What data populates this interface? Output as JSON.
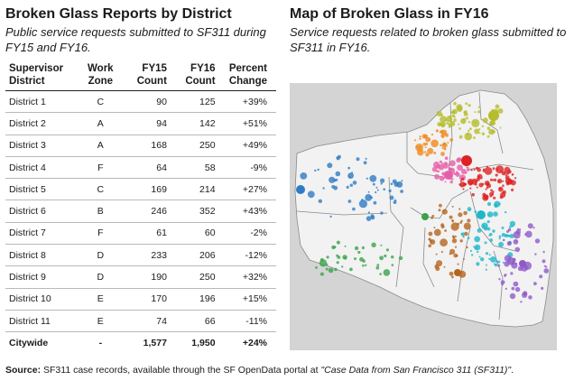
{
  "table_panel": {
    "title": "Broken Glass Reports by District",
    "subtitle": "Public service requests submitted to SF311 during FY15 and FY16.",
    "headers": {
      "district": [
        "Supervisor",
        "District"
      ],
      "zone": [
        "Work",
        "Zone"
      ],
      "fy15": [
        "FY15",
        "Count"
      ],
      "fy16": [
        "FY16",
        "Count"
      ],
      "pct": [
        "Percent",
        "Change"
      ]
    },
    "rows": [
      {
        "district": "District 1",
        "zone": "C",
        "fy15": "90",
        "fy16": "125",
        "pct": "+39%"
      },
      {
        "district": "District 2",
        "zone": "A",
        "fy15": "94",
        "fy16": "142",
        "pct": "+51%"
      },
      {
        "district": "District 3",
        "zone": "A",
        "fy15": "168",
        "fy16": "250",
        "pct": "+49%"
      },
      {
        "district": "District 4",
        "zone": "F",
        "fy15": "64",
        "fy16": "58",
        "pct": "-9%"
      },
      {
        "district": "District 5",
        "zone": "C",
        "fy15": "169",
        "fy16": "214",
        "pct": "+27%"
      },
      {
        "district": "District 6",
        "zone": "B",
        "fy15": "246",
        "fy16": "352",
        "pct": "+43%"
      },
      {
        "district": "District 7",
        "zone": "F",
        "fy15": "61",
        "fy16": "60",
        "pct": "-2%"
      },
      {
        "district": "District 8",
        "zone": "D",
        "fy15": "233",
        "fy16": "206",
        "pct": "-12%"
      },
      {
        "district": "District 9",
        "zone": "D",
        "fy15": "190",
        "fy16": "250",
        "pct": "+32%"
      },
      {
        "district": "District 10",
        "zone": "E",
        "fy15": "170",
        "fy16": "196",
        "pct": "+15%"
      },
      {
        "district": "District 11",
        "zone": "E",
        "fy15": "74",
        "fy16": "66",
        "pct": "-11%"
      },
      {
        "district": "Citywide",
        "zone": "-",
        "fy15": "1,577",
        "fy16": "1,950",
        "pct": "+24%"
      }
    ]
  },
  "map_panel": {
    "title": "Map of Broken Glass in FY16",
    "subtitle": "Service requests related to broken glass submitted to SF311 in FY16.",
    "colors": {
      "background": "#d4d4d4",
      "land": "#f2f2f2",
      "boundary": "#8a8a8a",
      "olive": "#b5bd2a",
      "orange": "#ef8a1e",
      "pink": "#e75ea8",
      "red": "#dd2222",
      "blue": "#2e7cc4",
      "green": "#3aa24a",
      "brown": "#b5641e",
      "cyan": "#1cb7c9",
      "purple": "#8f5ac8"
    }
  },
  "source": {
    "label": "Source:",
    "text": "SF311 case records, available through the SF OpenData portal at",
    "link": "\"Case Data from San Francisco 311 (SF311)\"",
    "end": "."
  }
}
